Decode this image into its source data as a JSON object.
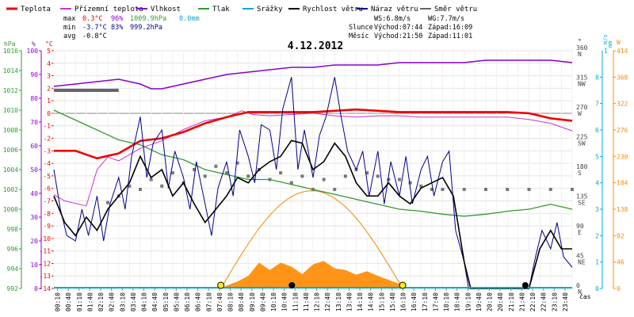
{
  "legend": [
    {
      "label": "Teplota",
      "color": "#ee0000"
    },
    {
      "label": "Přízemní teplota",
      "color": "#cc33cc"
    },
    {
      "label": "Vlhkost",
      "color": "#8800cc"
    },
    {
      "label": "Tlak",
      "color": "#339933"
    },
    {
      "label": "Srážky",
      "color": "#00aacc"
    },
    {
      "label": "Rychlost větru",
      "color": "#000000"
    },
    {
      "label": "Náraz větru",
      "color": "#000088"
    },
    {
      "label": "Směr větru",
      "color": "#666666"
    }
  ],
  "stats": {
    "max_label": "max",
    "min_label": "min",
    "avg_label": "avg",
    "max_temp": "0.3°C",
    "max_hum": "96%",
    "max_press": "1009.9hPa",
    "rain": "0.0mm",
    "min_temp": "-3.7°C",
    "min_hum": "83%",
    "min_press": "999.2hPa",
    "avg_temp": "-0.8°C"
  },
  "wind_info": {
    "ws": "WS:6.8m/s",
    "wg": "WG:7.7m/s"
  },
  "sun": {
    "label": "Slunce",
    "rise": "Východ:07:44",
    "set": "Západ:16:09"
  },
  "moon": {
    "label": "Měsíc",
    "rise": "Východ:21:50",
    "set": "Západ:11:01"
  },
  "date": "4.12.2012",
  "axis_units": {
    "hpa": "hPa",
    "pct": "%",
    "degc": "°C",
    "deg": "°",
    "ms": "m/s",
    "mm": "mm",
    "w": "W",
    "time": "čas"
  },
  "chart_data": {
    "type": "line",
    "title": "4.12.2012",
    "x_labels": [
      "00:10",
      "00:40",
      "01:10",
      "01:40",
      "02:10",
      "02:40",
      "03:10",
      "03:40",
      "04:10",
      "04:40",
      "05:10",
      "05:40",
      "06:10",
      "06:40",
      "07:10",
      "07:40",
      "08:10",
      "08:40",
      "09:10",
      "09:40",
      "10:10",
      "10:40",
      "11:10",
      "11:40",
      "12:10",
      "12:40",
      "13:10",
      "13:40",
      "14:10",
      "14:40",
      "15:10",
      "15:40",
      "16:10",
      "16:40",
      "17:10",
      "17:40",
      "18:10",
      "18:40",
      "19:10",
      "19:40",
      "20:10",
      "20:40",
      "21:10",
      "21:40",
      "22:10",
      "22:40",
      "23:10",
      "23:40"
    ],
    "axes": {
      "pressure_hpa": {
        "min": 992,
        "max": 1016,
        "step": 2
      },
      "humidity_pct": {
        "min": 0,
        "max": 100,
        "step": 10
      },
      "temperature_c": {
        "min": -14,
        "max": 5,
        "step": 1
      },
      "direction_deg": {
        "ticks": [
          {
            "v": 0,
            "label": "0",
            "dir": "N"
          },
          {
            "v": 45,
            "label": "45",
            "dir": "NE"
          },
          {
            "v": 90,
            "label": "90",
            "dir": "E"
          },
          {
            "v": 135,
            "label": "135",
            "dir": "SE"
          },
          {
            "v": 180,
            "label": "180",
            "dir": "S"
          },
          {
            "v": 225,
            "label": "225",
            "dir": "SW"
          },
          {
            "v": 270,
            "label": "270",
            "dir": "W"
          },
          {
            "v": 315,
            "label": "315",
            "dir": "NW"
          },
          {
            "v": 360,
            "label": "360",
            "dir": "N"
          }
        ]
      },
      "wind_ms": {
        "min": 0,
        "max": 9,
        "step": 1
      },
      "rain_mm": {
        "min": 0,
        "max": 1
      },
      "solar_w": {
        "min": 0,
        "max": 414,
        "ticks": [
          0,
          46,
          92,
          138,
          184,
          230,
          276,
          322,
          368,
          414
        ]
      }
    },
    "series": {
      "temperature_c": [
        [
          0,
          -3
        ],
        [
          1,
          -3
        ],
        [
          2,
          -3.6
        ],
        [
          3,
          -3.2
        ],
        [
          4,
          -2.2
        ],
        [
          5,
          -2
        ],
        [
          6,
          -1.5
        ],
        [
          7,
          -0.8
        ],
        [
          8,
          -0.3
        ],
        [
          9,
          0.1
        ],
        [
          10,
          0.1
        ],
        [
          11,
          0.1
        ],
        [
          12,
          0.1
        ],
        [
          13,
          0.2
        ],
        [
          14,
          0.3
        ],
        [
          15,
          0.2
        ],
        [
          16,
          0.1
        ],
        [
          17,
          0.1
        ],
        [
          18,
          0.1
        ],
        [
          19,
          0.1
        ],
        [
          20,
          0.1
        ],
        [
          21,
          0.1
        ],
        [
          22,
          0
        ],
        [
          23,
          -0.4
        ],
        [
          24,
          -0.6
        ]
      ],
      "ground_temp_c": [
        [
          0,
          -6.5
        ],
        [
          0.5,
          -7
        ],
        [
          1.5,
          -7.4
        ],
        [
          2,
          -4.5
        ],
        [
          2.5,
          -3.5
        ],
        [
          3,
          -3.8
        ],
        [
          4,
          -2.8
        ],
        [
          5,
          -2.2
        ],
        [
          6,
          -1.3
        ],
        [
          7,
          -0.6
        ],
        [
          8,
          -0.3
        ],
        [
          8.7,
          0.2
        ],
        [
          9.2,
          -0.1
        ],
        [
          10,
          -0.2
        ],
        [
          11,
          -0.1
        ],
        [
          12,
          0
        ],
        [
          13,
          -0.2
        ],
        [
          14,
          -0.3
        ],
        [
          15,
          -0.2
        ],
        [
          16,
          -0.2
        ],
        [
          17,
          -0.3
        ],
        [
          18,
          -0.3
        ],
        [
          19,
          -0.3
        ],
        [
          20,
          -0.3
        ],
        [
          21,
          -0.3
        ],
        [
          22,
          -0.5
        ],
        [
          23,
          -0.8
        ],
        [
          24,
          -1.4
        ]
      ],
      "humidity_pct": [
        [
          0,
          85
        ],
        [
          1,
          86
        ],
        [
          2,
          87
        ],
        [
          3,
          88
        ],
        [
          4,
          86
        ],
        [
          4.5,
          84
        ],
        [
          5,
          84
        ],
        [
          6,
          86
        ],
        [
          7,
          88
        ],
        [
          8,
          90
        ],
        [
          9,
          91
        ],
        [
          10,
          92
        ],
        [
          11,
          93
        ],
        [
          12,
          93
        ],
        [
          13,
          94
        ],
        [
          14,
          94
        ],
        [
          15,
          94
        ],
        [
          16,
          95
        ],
        [
          17,
          95
        ],
        [
          18,
          95
        ],
        [
          19,
          95
        ],
        [
          20,
          96
        ],
        [
          21,
          96
        ],
        [
          22,
          96
        ],
        [
          23,
          96
        ],
        [
          24,
          95
        ]
      ],
      "pressure_hpa": [
        [
          0,
          1010
        ],
        [
          1,
          1009
        ],
        [
          2,
          1008
        ],
        [
          3,
          1007
        ],
        [
          4,
          1006.5
        ],
        [
          5,
          1005.5
        ],
        [
          6,
          1005
        ],
        [
          7,
          1004
        ],
        [
          8,
          1003.5
        ],
        [
          9,
          1003
        ],
        [
          10,
          1003
        ],
        [
          11,
          1002.5
        ],
        [
          12,
          1002
        ],
        [
          13,
          1001.5
        ],
        [
          14,
          1001
        ],
        [
          15,
          1000.5
        ],
        [
          16,
          1000
        ],
        [
          17,
          999.8
        ],
        [
          18,
          999.5
        ],
        [
          19,
          999.3
        ],
        [
          20,
          999.5
        ],
        [
          21,
          999.8
        ],
        [
          22,
          1000
        ],
        [
          23,
          1000.5
        ],
        [
          24,
          1000
        ]
      ],
      "wind_speed_ms": [
        [
          0,
          3.5
        ],
        [
          0.5,
          2.5
        ],
        [
          1,
          2
        ],
        [
          1.5,
          2.7
        ],
        [
          2,
          2.2
        ],
        [
          2.5,
          3
        ],
        [
          3,
          3.5
        ],
        [
          3.5,
          4
        ],
        [
          4,
          5
        ],
        [
          4.5,
          4.2
        ],
        [
          5,
          4.5
        ],
        [
          5.5,
          3.5
        ],
        [
          6,
          4
        ],
        [
          6.5,
          3.2
        ],
        [
          7,
          2.5
        ],
        [
          7.5,
          3
        ],
        [
          8,
          3.5
        ],
        [
          8.5,
          4.2
        ],
        [
          9,
          4
        ],
        [
          9.5,
          4.5
        ],
        [
          10,
          4.8
        ],
        [
          10.5,
          5
        ],
        [
          11,
          5.6
        ],
        [
          11.5,
          5.5
        ],
        [
          12,
          4.5
        ],
        [
          12.5,
          4.8
        ],
        [
          13,
          5.5
        ],
        [
          13.5,
          5
        ],
        [
          14,
          4
        ],
        [
          14.5,
          3.5
        ],
        [
          15,
          3.5
        ],
        [
          15.5,
          4
        ],
        [
          16,
          3.5
        ],
        [
          16.5,
          3.2
        ],
        [
          17,
          3.8
        ],
        [
          17.5,
          4
        ],
        [
          18,
          4.2
        ],
        [
          18.5,
          3.5
        ],
        [
          19,
          1
        ],
        [
          19.3,
          0
        ],
        [
          20,
          0
        ],
        [
          21,
          0
        ],
        [
          22,
          0
        ],
        [
          22.5,
          1.5
        ],
        [
          23,
          2.2
        ],
        [
          23.5,
          1.5
        ],
        [
          24,
          1.5
        ]
      ],
      "wind_gust_ms": [
        [
          0,
          4.5
        ],
        [
          0.3,
          3
        ],
        [
          0.6,
          2
        ],
        [
          1,
          1.8
        ],
        [
          1.3,
          3
        ],
        [
          1.6,
          2
        ],
        [
          2,
          3.5
        ],
        [
          2.3,
          1.8
        ],
        [
          2.6,
          3.2
        ],
        [
          3,
          4.2
        ],
        [
          3.3,
          3
        ],
        [
          3.6,
          5
        ],
        [
          4,
          6.5
        ],
        [
          4.3,
          4.2
        ],
        [
          4.6,
          5.5
        ],
        [
          5,
          6
        ],
        [
          5.3,
          3.8
        ],
        [
          5.6,
          5.2
        ],
        [
          6,
          4.2
        ],
        [
          6.3,
          3
        ],
        [
          6.6,
          4.8
        ],
        [
          7,
          3.2
        ],
        [
          7.3,
          2
        ],
        [
          7.6,
          3.8
        ],
        [
          8,
          4.8
        ],
        [
          8.3,
          3.5
        ],
        [
          8.6,
          6
        ],
        [
          9,
          5
        ],
        [
          9.3,
          4
        ],
        [
          9.6,
          6.2
        ],
        [
          10,
          6
        ],
        [
          10.3,
          4.5
        ],
        [
          10.6,
          6.8
        ],
        [
          11,
          8
        ],
        [
          11.3,
          4.5
        ],
        [
          11.6,
          6
        ],
        [
          12,
          4.2
        ],
        [
          12.3,
          5.8
        ],
        [
          12.6,
          6.5
        ],
        [
          13,
          8
        ],
        [
          13.3,
          6.5
        ],
        [
          13.6,
          5.2
        ],
        [
          14,
          4.5
        ],
        [
          14.3,
          5.2
        ],
        [
          14.6,
          3.5
        ],
        [
          15,
          5.2
        ],
        [
          15.3,
          3.2
        ],
        [
          15.6,
          4.8
        ],
        [
          16,
          3.5
        ],
        [
          16.3,
          5
        ],
        [
          16.6,
          3.2
        ],
        [
          17,
          4.5
        ],
        [
          17.3,
          5
        ],
        [
          17.6,
          3.5
        ],
        [
          18,
          4.8
        ],
        [
          18.3,
          5.2
        ],
        [
          18.6,
          2.2
        ],
        [
          19,
          1
        ],
        [
          19.2,
          0
        ],
        [
          20,
          0
        ],
        [
          21,
          0
        ],
        [
          22,
          0
        ],
        [
          22.3,
          1.2
        ],
        [
          22.6,
          2.2
        ],
        [
          23,
          1.5
        ],
        [
          23.3,
          2.5
        ],
        [
          23.6,
          1.2
        ],
        [
          24,
          0.8
        ]
      ],
      "wind_dir_deg": [
        [
          2.5,
          130
        ],
        [
          3,
          140
        ],
        [
          3.5,
          155
        ],
        [
          4,
          150
        ],
        [
          4.5,
          165
        ],
        [
          5,
          155
        ],
        [
          5.5,
          175
        ],
        [
          6,
          160
        ],
        [
          6.5,
          180
        ],
        [
          7,
          170
        ],
        [
          7.5,
          185
        ],
        [
          8,
          175
        ],
        [
          8.5,
          190
        ],
        [
          9,
          170
        ],
        [
          9.5,
          180
        ],
        [
          10,
          165
        ],
        [
          10.5,
          175
        ],
        [
          11,
          160
        ],
        [
          11.5,
          170
        ],
        [
          12,
          150
        ],
        [
          12.5,
          165
        ],
        [
          13,
          150
        ],
        [
          13.5,
          170
        ],
        [
          14,
          180
        ],
        [
          14.5,
          175
        ],
        [
          15,
          170
        ],
        [
          15.5,
          165
        ],
        [
          16,
          165
        ],
        [
          16.5,
          160
        ],
        [
          17,
          155
        ],
        [
          17.5,
          150
        ],
        [
          18,
          150
        ],
        [
          19,
          150
        ],
        [
          20,
          150
        ],
        [
          21,
          150
        ],
        [
          22,
          150
        ],
        [
          23,
          150
        ],
        [
          24,
          150
        ]
      ],
      "wind_dir_line": [
        {
          "from": 0,
          "to": 3,
          "deg": 300
        }
      ],
      "solar_w": [
        [
          7.7,
          0
        ],
        [
          8,
          5
        ],
        [
          8.5,
          12
        ],
        [
          9,
          22
        ],
        [
          9.5,
          45
        ],
        [
          10,
          32
        ],
        [
          10.5,
          45
        ],
        [
          11,
          38
        ],
        [
          11.5,
          25
        ],
        [
          12,
          42
        ],
        [
          12.5,
          48
        ],
        [
          13,
          35
        ],
        [
          13.5,
          32
        ],
        [
          14,
          24
        ],
        [
          14.5,
          30
        ],
        [
          15,
          22
        ],
        [
          15.5,
          15
        ],
        [
          16,
          8
        ],
        [
          16.2,
          0
        ]
      ],
      "sun_path_deg_max": 148,
      "sunrise_h": 7.73,
      "sunset_h": 16.15,
      "moonset_h": 11.02,
      "moonrise_h": 21.83
    }
  }
}
